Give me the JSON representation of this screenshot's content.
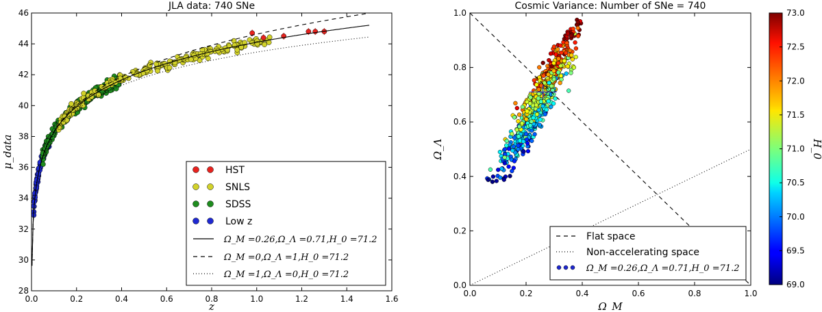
{
  "chart_data": [
    {
      "type": "scatter",
      "title": "JLA data: 740 SNe",
      "xlabel": "z",
      "ylabel": "μ_data",
      "xlim": [
        0.0,
        1.6
      ],
      "ylim": [
        28,
        46
      ],
      "xticks": [
        "0.0",
        "0.2",
        "0.4",
        "0.6",
        "0.8",
        "1.0",
        "1.2",
        "1.4",
        "1.6"
      ],
      "yticks": [
        "28",
        "30",
        "32",
        "34",
        "36",
        "38",
        "40",
        "42",
        "44",
        "46"
      ],
      "series": [
        {
          "name": "HST",
          "color": "#e8221e",
          "z_range": [
            0.97,
            1.3
          ],
          "count": 9,
          "points": [
            [
              0.98,
              44.7
            ],
            [
              1.03,
              44.4
            ],
            [
              1.12,
              44.5
            ],
            [
              1.23,
              44.8
            ],
            [
              1.26,
              44.8
            ],
            [
              1.3,
              44.8
            ]
          ]
        },
        {
          "name": "SNLS",
          "color": "#d2d22a",
          "z_range": [
            0.12,
            1.06
          ],
          "count": 239
        },
        {
          "name": "SDSS",
          "color": "#1e8c1e",
          "z_range": [
            0.05,
            0.4
          ],
          "count": 374
        },
        {
          "name": "Low z",
          "color": "#1e28d2",
          "z_range": [
            0.01,
            0.08
          ],
          "count": 118
        }
      ],
      "models": [
        {
          "label": "Ω_M =0.26,Ω_Λ =0.71,H_0 =71.2",
          "Om": 0.26,
          "OL": 0.71,
          "H0": 71.2,
          "style": "solid"
        },
        {
          "label": "Ω_M =0,Ω_Λ =1,H_0 =71.2",
          "Om": 0,
          "OL": 1,
          "H0": 71.2,
          "style": "dashed"
        },
        {
          "label": "Ω_M =1,Ω_Λ =0,H_0 =71.2",
          "Om": 1,
          "OL": 0,
          "H0": 71.2,
          "style": "dotted"
        }
      ],
      "legend_location": "lower-right"
    },
    {
      "type": "scatter",
      "title": "Cosmic Variance: Number of SNe = 740",
      "xlabel": "Ω_M",
      "ylabel": "Ω_Λ",
      "xlim": [
        0.0,
        1.0
      ],
      "ylim": [
        0.0,
        1.0
      ],
      "xticks": [
        "0.0",
        "0.2",
        "0.4",
        "0.6",
        "0.8",
        "1.0"
      ],
      "yticks": [
        "0.0",
        "0.2",
        "0.4",
        "0.6",
        "0.8",
        "1.0"
      ],
      "point_cloud": {
        "count": 740,
        "x_range": [
          0.06,
          0.4
        ],
        "y_range": [
          0.38,
          0.98
        ],
        "correlation": "positive"
      },
      "highlight": {
        "x": 0.26,
        "y": 0.71,
        "color": "#2a2ad8"
      },
      "lines": [
        {
          "label": "Flat space",
          "equation": "Ω_Λ = 1 − Ω_M",
          "style": "dashed"
        },
        {
          "label": "Non-accelerating space",
          "equation": "Ω_Λ = Ω_M / 2",
          "style": "dotted"
        }
      ],
      "legend_scatter_label": "Ω_M =0.26,Ω_Λ =0.71,H_0 =71.2",
      "legend_location": "lower-right",
      "colorbar": {
        "label": "H_0",
        "range": [
          69.0,
          73.0
        ],
        "ticks": [
          "69.0",
          "69.5",
          "70.0",
          "70.5",
          "71.0",
          "71.5",
          "72.0",
          "72.5",
          "73.0"
        ],
        "colormap": "jet"
      }
    }
  ]
}
